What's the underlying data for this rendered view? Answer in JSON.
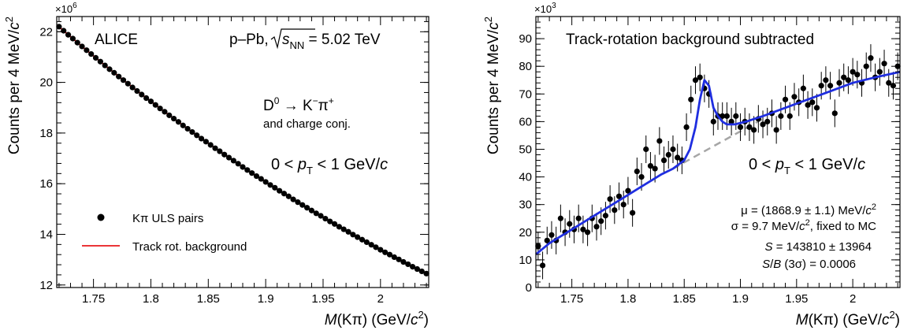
{
  "chart_data": [
    {
      "type": "scatter",
      "name": "left-panel",
      "xlabel_parts": [
        "M",
        "(Kπ) (GeV/",
        "c",
        "2",
        ")"
      ],
      "ylabel_parts": [
        "Counts per 4 MeV/",
        "c",
        "2"
      ],
      "y_multiplier": "×10",
      "y_multiplier_exp": "6",
      "xlim": [
        1.718,
        2.042
      ],
      "ylim": [
        11.9,
        22.6
      ],
      "x_ticks": [
        "1.75",
        "1.8",
        "1.85",
        "1.9",
        "1.95",
        "2"
      ],
      "x_tick_values": [
        1.75,
        1.8,
        1.85,
        1.9,
        1.95,
        2.0
      ],
      "y_ticks": [
        "12",
        "14",
        "16",
        "18",
        "20",
        "22"
      ],
      "y_tick_values": [
        12,
        14,
        16,
        18,
        20,
        22
      ],
      "experiment": "ALICE",
      "system_parts": [
        "p–Pb, ",
        "s",
        "NN",
        " = 5.02 TeV"
      ],
      "decay_parts": [
        "D",
        "0",
        " → K",
        "−",
        "π",
        "+"
      ],
      "decay_line2": "and charge conj.",
      "pt_parts": [
        "0 < ",
        "p",
        "T",
        " < 1 GeV/",
        "c"
      ],
      "legend": [
        {
          "label": "Kπ ULS pairs",
          "marker": "dot"
        },
        {
          "label": "Track rot. background",
          "marker": "line"
        }
      ],
      "legend_position": "bottom-left",
      "colors": {
        "points": "#000000",
        "fit": "#e8181c"
      },
      "series": [
        {
          "role": "data",
          "x": [
            1.72,
            1.724,
            1.728,
            1.732,
            1.736,
            1.74,
            1.744,
            1.748,
            1.752,
            1.756,
            1.76,
            1.764,
            1.768,
            1.772,
            1.776,
            1.78,
            1.784,
            1.788,
            1.792,
            1.796,
            1.8,
            1.804,
            1.808,
            1.812,
            1.816,
            1.82,
            1.824,
            1.828,
            1.832,
            1.836,
            1.84,
            1.844,
            1.848,
            1.852,
            1.856,
            1.86,
            1.864,
            1.868,
            1.872,
            1.876,
            1.88,
            1.884,
            1.888,
            1.892,
            1.896,
            1.9,
            1.904,
            1.908,
            1.912,
            1.916,
            1.92,
            1.924,
            1.928,
            1.932,
            1.936,
            1.94,
            1.944,
            1.948,
            1.952,
            1.956,
            1.96,
            1.964,
            1.968,
            1.972,
            1.976,
            1.98,
            1.984,
            1.988,
            1.992,
            1.996,
            2.0,
            2.004,
            2.008,
            2.012,
            2.016,
            2.02,
            2.024,
            2.028,
            2.032,
            2.036,
            2.04
          ],
          "y": [
            22.2,
            22.04,
            21.88,
            21.73,
            21.57,
            21.42,
            21.27,
            21.12,
            20.97,
            20.82,
            20.67,
            20.52,
            20.38,
            20.23,
            20.09,
            19.95,
            19.8,
            19.66,
            19.52,
            19.38,
            19.25,
            19.11,
            18.97,
            18.84,
            18.7,
            18.57,
            18.44,
            18.3,
            18.17,
            18.04,
            17.91,
            17.78,
            17.66,
            17.53,
            17.4,
            17.28,
            17.15,
            17.03,
            16.91,
            16.79,
            16.66,
            16.54,
            16.42,
            16.3,
            16.19,
            16.07,
            15.95,
            15.84,
            15.72,
            15.61,
            15.5,
            15.38,
            15.27,
            15.16,
            15.05,
            14.94,
            14.83,
            14.73,
            14.62,
            14.51,
            14.41,
            14.3,
            14.2,
            14.1,
            13.99,
            13.89,
            13.79,
            13.69,
            13.59,
            13.49,
            13.39,
            13.29,
            13.2,
            13.1,
            13.01,
            12.91,
            12.82,
            12.72,
            12.63,
            12.54,
            12.45
          ]
        },
        {
          "role": "fit",
          "x": [
            1.718,
            1.74,
            1.76,
            1.78,
            1.8,
            1.82,
            1.84,
            1.86,
            1.88,
            1.9,
            1.92,
            1.94,
            1.96,
            1.98,
            2.0,
            2.02,
            2.042
          ],
          "y": [
            22.27,
            21.42,
            20.67,
            19.95,
            19.25,
            18.57,
            17.91,
            17.28,
            16.66,
            16.07,
            15.5,
            14.94,
            14.41,
            13.89,
            13.39,
            12.91,
            12.41
          ]
        }
      ]
    },
    {
      "type": "scatter",
      "name": "right-panel",
      "title": "Track-rotation background subtracted",
      "xlabel_parts": [
        "M",
        "(Kπ) (GeV/",
        "c",
        "2",
        ")"
      ],
      "ylabel_parts": [
        "Counts per 4 MeV/",
        "c",
        "2"
      ],
      "y_multiplier": "×10",
      "y_multiplier_exp": "3",
      "xlim": [
        1.718,
        2.042
      ],
      "ylim": [
        0,
        98
      ],
      "x_ticks": [
        "1.75",
        "1.8",
        "1.85",
        "1.9",
        "1.95",
        "2"
      ],
      "x_tick_values": [
        1.75,
        1.8,
        1.85,
        1.9,
        1.95,
        2.0
      ],
      "y_ticks": [
        "0",
        "10",
        "20",
        "30",
        "40",
        "50",
        "60",
        "70",
        "80",
        "90"
      ],
      "y_tick_values": [
        0,
        10,
        20,
        30,
        40,
        50,
        60,
        70,
        80,
        90
      ],
      "pt_parts": [
        "0 < ",
        "p",
        "T",
        " < 1 GeV/",
        "c"
      ],
      "mu_parts": [
        "μ = (1868.9 ± 1.1) MeV/",
        "c",
        "2"
      ],
      "sigma_parts": [
        "σ = 9.7 MeV/",
        "c",
        "2",
        ", fixed to MC"
      ],
      "signal_parts": [
        "S",
        " = 143810 ± 13964"
      ],
      "sb_parts": [
        "S",
        "/",
        "B",
        " (3σ) = 0.0006"
      ],
      "colors": {
        "points": "#000000",
        "fit": "#1f2ee0",
        "background": "#a6a6a6"
      },
      "series": [
        {
          "role": "data",
          "x": [
            1.72,
            1.724,
            1.728,
            1.732,
            1.736,
            1.74,
            1.744,
            1.748,
            1.752,
            1.756,
            1.76,
            1.764,
            1.768,
            1.772,
            1.776,
            1.78,
            1.784,
            1.788,
            1.792,
            1.796,
            1.8,
            1.804,
            1.808,
            1.812,
            1.816,
            1.82,
            1.824,
            1.828,
            1.832,
            1.836,
            1.84,
            1.844,
            1.848,
            1.852,
            1.856,
            1.86,
            1.864,
            1.868,
            1.872,
            1.876,
            1.88,
            1.884,
            1.888,
            1.892,
            1.896,
            1.9,
            1.904,
            1.908,
            1.912,
            1.916,
            1.92,
            1.924,
            1.928,
            1.932,
            1.936,
            1.94,
            1.944,
            1.948,
            1.952,
            1.956,
            1.96,
            1.964,
            1.968,
            1.972,
            1.976,
            1.98,
            1.984,
            1.988,
            1.992,
            1.996,
            2.0,
            2.004,
            2.008,
            2.012,
            2.016,
            2.02,
            2.024,
            2.028,
            2.032,
            2.036,
            2.04
          ],
          "y": [
            15,
            8,
            17,
            19,
            17,
            25,
            20,
            23,
            21,
            25,
            21,
            20,
            25,
            22,
            24,
            26,
            32,
            28,
            33,
            30,
            35,
            27,
            42,
            40,
            50,
            44,
            43,
            53,
            46,
            48,
            50,
            47,
            46,
            58,
            68,
            75,
            76,
            72,
            70,
            60,
            62,
            62,
            62,
            60,
            62,
            58,
            60,
            58,
            57,
            61,
            59,
            60,
            63,
            57,
            62,
            68,
            62,
            69,
            67,
            72,
            66,
            67,
            65,
            73,
            75,
            73,
            63,
            74,
            76,
            75,
            78,
            77,
            74,
            80,
            83,
            76,
            78,
            81,
            74,
            73,
            80
          ],
          "yerr": [
            5,
            5,
            5,
            5,
            5,
            5,
            5,
            5,
            5,
            5,
            5,
            5,
            5,
            5,
            5,
            5,
            5,
            5,
            5,
            5,
            5,
            5,
            5,
            5,
            5,
            5,
            5,
            5,
            5,
            5,
            5,
            5,
            5,
            5,
            5,
            5,
            5,
            5,
            5,
            5,
            5,
            5,
            5,
            5,
            5,
            5,
            5,
            5,
            5,
            5,
            5,
            5,
            5,
            5,
            5,
            5,
            5,
            5,
            5,
            5,
            5,
            5,
            5,
            5,
            5,
            5,
            5,
            5,
            5,
            5,
            5,
            5,
            5,
            5,
            5,
            5,
            5,
            5,
            5,
            5,
            5
          ]
        },
        {
          "role": "fit",
          "x": [
            1.718,
            1.73,
            1.75,
            1.77,
            1.79,
            1.81,
            1.83,
            1.84,
            1.85,
            1.855,
            1.86,
            1.864,
            1.868,
            1.872,
            1.876,
            1.88,
            1.884,
            1.888,
            1.895,
            1.905,
            1.92,
            1.94,
            1.96,
            1.98,
            2.0,
            2.02,
            2.042
          ],
          "y": [
            12,
            16,
            21,
            26,
            31,
            36,
            41,
            43,
            46,
            50,
            58,
            68,
            75,
            73,
            65,
            62,
            60,
            59,
            59,
            60,
            62,
            65,
            68,
            71,
            74,
            76,
            78
          ]
        },
        {
          "role": "background",
          "x": [
            1.84,
            1.92
          ],
          "y": [
            43,
            61
          ]
        }
      ]
    }
  ]
}
